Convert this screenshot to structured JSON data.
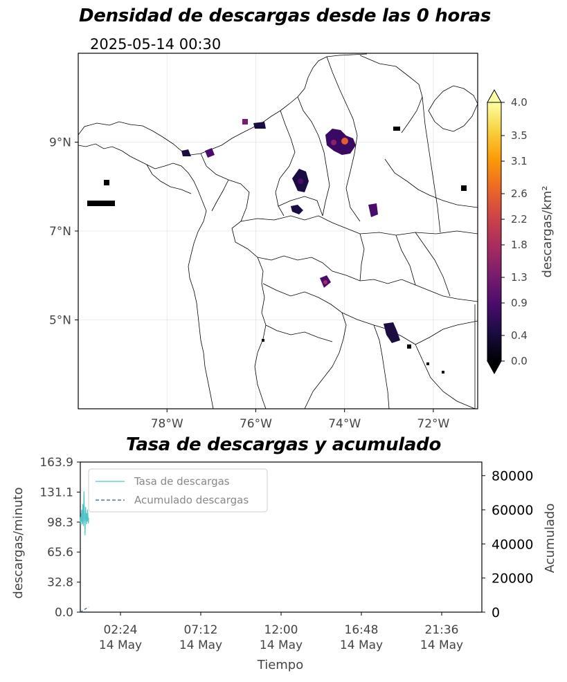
{
  "map": {
    "title": "Densidad de descargas desde las 0 horas",
    "timestamp": "2025-05-14 00:30",
    "lon_ticks": [
      "78°W",
      "76°W",
      "74°W",
      "72°W"
    ],
    "lon_values": [
      -78,
      -76,
      -74,
      -72
    ],
    "lat_ticks": [
      "9°N",
      "7°N",
      "5°N"
    ],
    "lat_values": [
      9,
      7,
      5
    ],
    "lon_range": [
      -80,
      -71
    ],
    "lat_range": [
      3,
      11
    ],
    "colorbar": {
      "label": "descargas/km²",
      "ticks": [
        "0.0",
        "0.4",
        "0.9",
        "1.3",
        "1.8",
        "2.2",
        "2.6",
        "3.1",
        "3.5",
        "4.0"
      ],
      "colormap": "inferno",
      "extend": "both"
    }
  },
  "chart_data": [
    {
      "type": "line",
      "title": "Tasa de descargas y acumulado",
      "xlabel": "Tiempo",
      "ylabel": "descargas/minuto",
      "y2label": "Acumulado",
      "x_ticks": [
        "02:24\n14 May",
        "07:12\n14 May",
        "12:00\n14 May",
        "16:48\n14 May",
        "21:36\n14 May"
      ],
      "x_tick_hours": [
        2.4,
        7.2,
        12.0,
        16.8,
        21.6
      ],
      "x_range_hours": [
        0,
        24
      ],
      "y_ticks": [
        "0.0",
        "32.8",
        "65.6",
        "98.3",
        "131.1",
        "163.9"
      ],
      "ylim": [
        0,
        163.9
      ],
      "y2_ticks": [
        "0",
        "20000",
        "40000",
        "60000",
        "80000"
      ],
      "y2lim": [
        0,
        88000
      ],
      "legend_placement": "upper-left",
      "series": [
        {
          "name": "Tasa de descargas",
          "axis": "left",
          "color": "#4fc3c7",
          "style": "solid",
          "x_minutes": [
            0,
            1,
            2,
            3,
            4,
            5,
            6,
            7,
            8,
            9,
            10,
            11,
            12,
            13,
            14,
            15,
            16,
            17,
            18,
            19,
            20,
            21,
            22,
            23,
            24,
            25,
            26,
            27,
            28,
            29,
            30
          ],
          "values": [
            98,
            104,
            95,
            108,
            99,
            112,
            101,
            96,
            107,
            118,
            103,
            94,
            110,
            132,
            120,
            100,
            97,
            84,
            106,
            115,
            110,
            102,
            96,
            108,
            104,
            99,
            112,
            107,
            101,
            97,
            103
          ]
        },
        {
          "name": "Acumulado descargas",
          "axis": "right",
          "color": "#2c5f7a",
          "style": "dashed",
          "x_minutes": [
            0,
            5,
            10,
            15,
            20,
            25,
            30
          ],
          "values": [
            0,
            520,
            1040,
            1560,
            2090,
            2620,
            3140
          ]
        }
      ]
    }
  ]
}
